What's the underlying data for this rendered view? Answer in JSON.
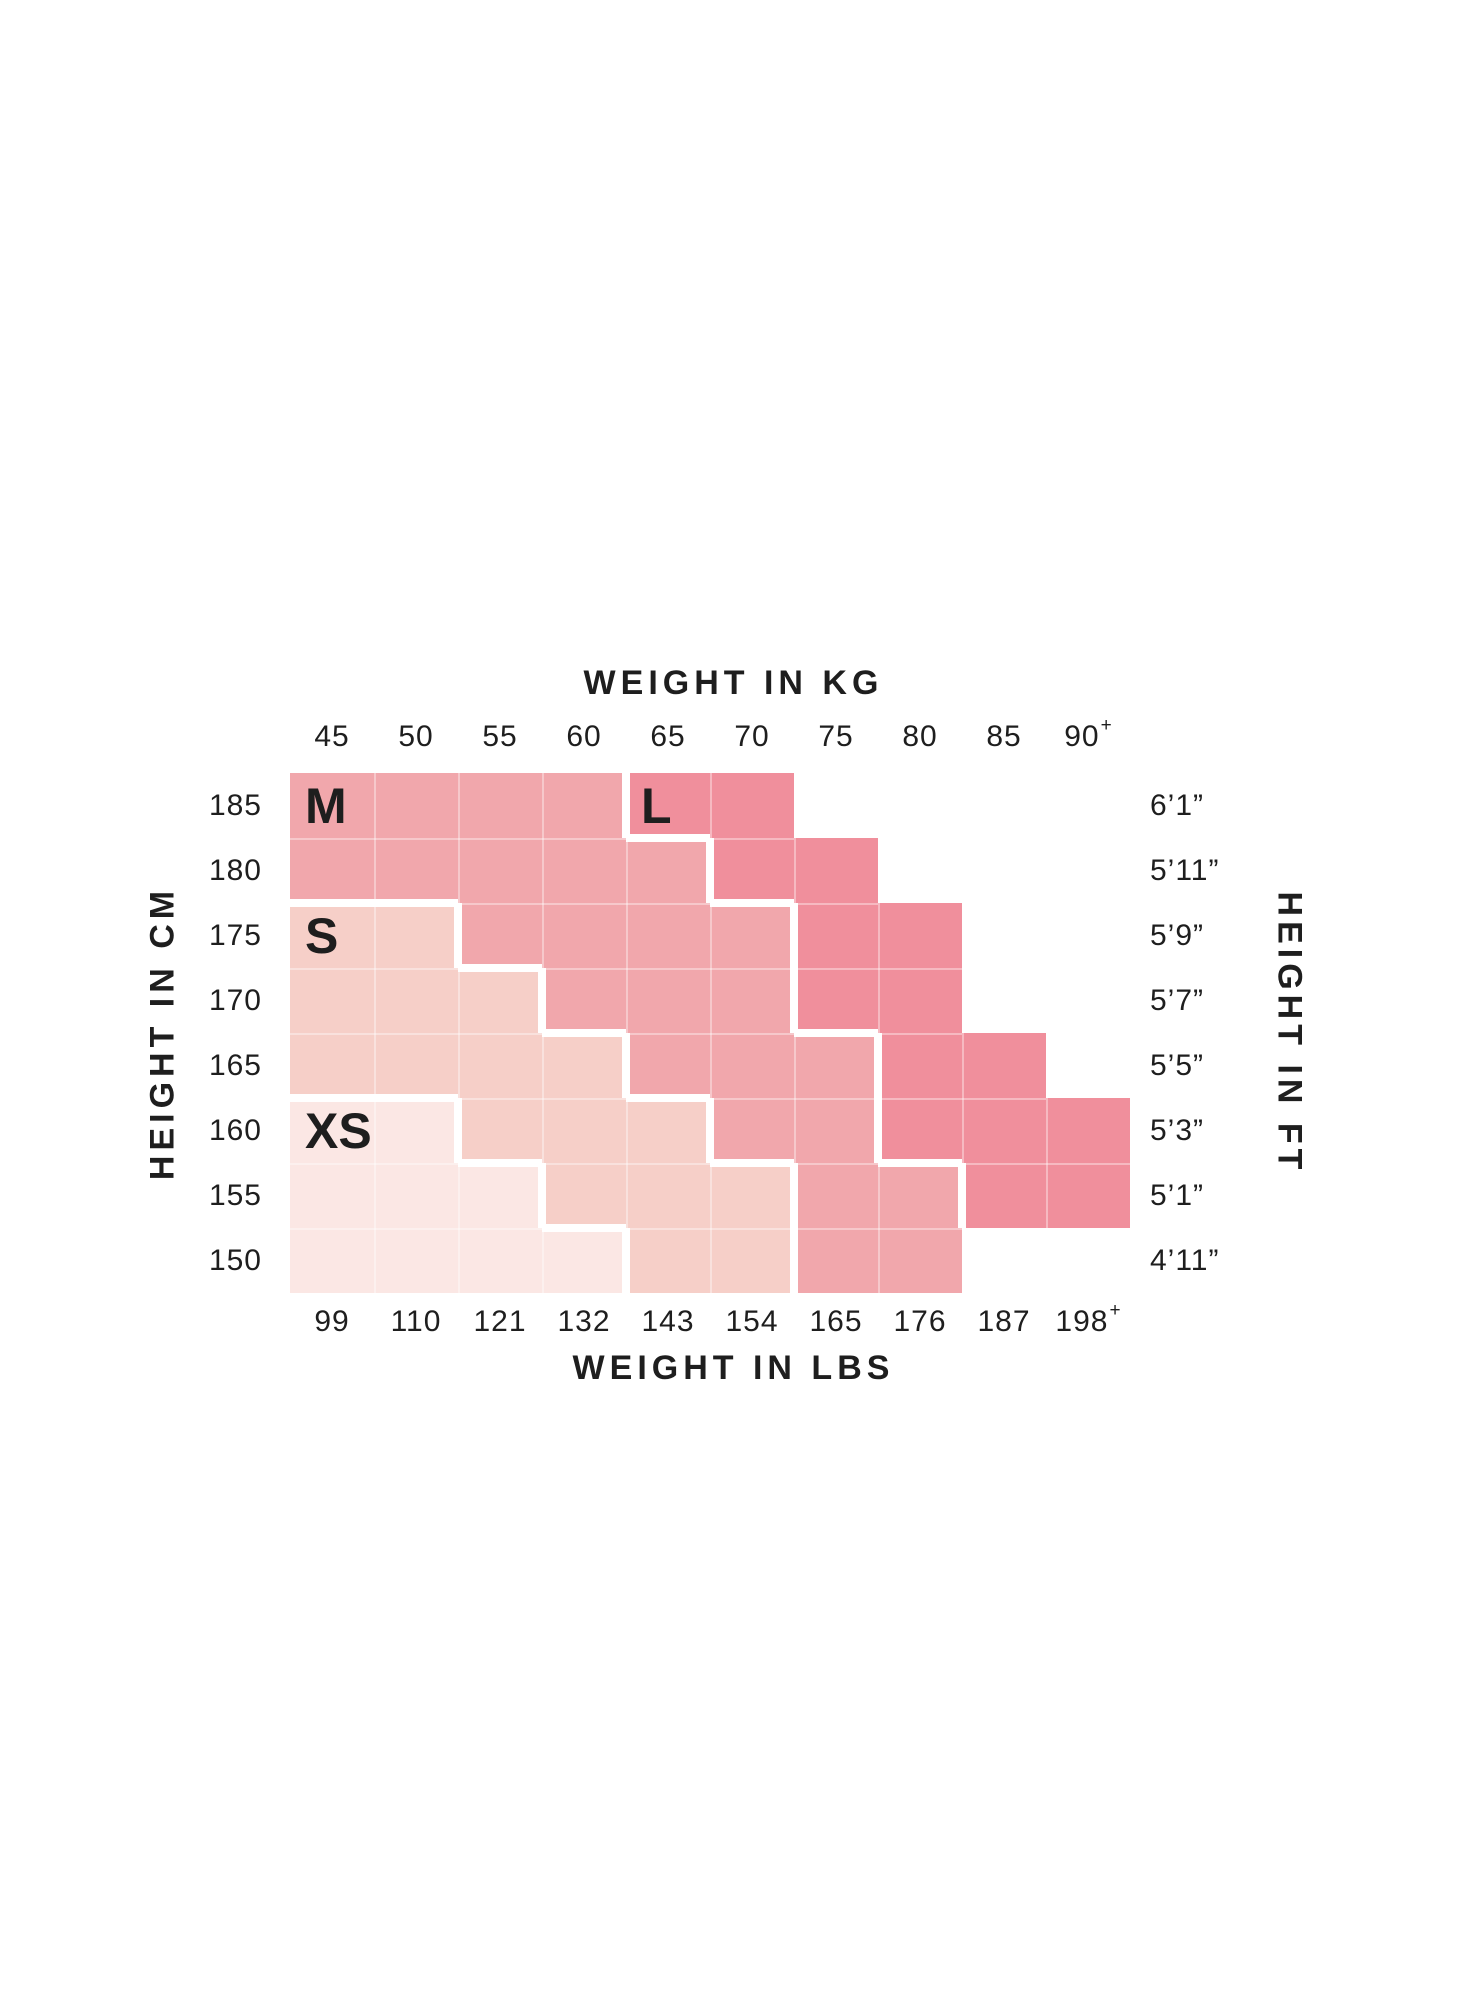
{
  "page": {
    "background": "#ffffff",
    "text_color": "#1e1e1e"
  },
  "chart_data": {
    "type": "heatmap",
    "title_top": "WEIGHT IN KG",
    "title_bottom": "WEIGHT IN LBS",
    "title_left": "HEIGHT IN CM",
    "title_right": "HEIGHT IN FT",
    "kg_ticks": [
      {
        "text": "45"
      },
      {
        "text": "50"
      },
      {
        "text": "55"
      },
      {
        "text": "60"
      },
      {
        "text": "65"
      },
      {
        "text": "70"
      },
      {
        "text": "75"
      },
      {
        "text": "80"
      },
      {
        "text": "85"
      },
      {
        "text": "90",
        "sup": "+"
      }
    ],
    "lbs_ticks": [
      {
        "text": "99"
      },
      {
        "text": "110"
      },
      {
        "text": "121"
      },
      {
        "text": "132"
      },
      {
        "text": "143"
      },
      {
        "text": "154"
      },
      {
        "text": "165"
      },
      {
        "text": "176"
      },
      {
        "text": "187"
      },
      {
        "text": "198",
        "sup": "+"
      }
    ],
    "cm_ticks": [
      "185",
      "180",
      "175",
      "170",
      "165",
      "160",
      "155",
      "150"
    ],
    "ft_ticks": [
      "6’1”",
      "5’11”",
      "5’9”",
      "5’7”",
      "5’5”",
      "5’3”",
      "5’1”",
      "4’11”"
    ],
    "sizes": {
      "XS": {
        "label": "XS",
        "color": "#fbe7e4"
      },
      "S": {
        "label": "S",
        "color": "#f6cfc8"
      },
      "M": {
        "label": "M",
        "color": "#f1a7ac"
      },
      "L": {
        "label": "L",
        "color": "#f08f9c"
      }
    },
    "matrix": [
      [
        "M",
        "M",
        "M",
        "M",
        "L",
        "L",
        null,
        null,
        null,
        null
      ],
      [
        "M",
        "M",
        "M",
        "M",
        "M",
        "L",
        "L",
        null,
        null,
        null
      ],
      [
        "S",
        "S",
        "M",
        "M",
        "M",
        "M",
        "L",
        "L",
        null,
        null
      ],
      [
        "S",
        "S",
        "S",
        "M",
        "M",
        "M",
        "L",
        "L",
        null,
        null
      ],
      [
        "S",
        "S",
        "S",
        "S",
        "M",
        "M",
        "M",
        "L",
        "L",
        null
      ],
      [
        "XS",
        "XS",
        "S",
        "S",
        "S",
        "M",
        "M",
        "L",
        "L",
        "L"
      ],
      [
        "XS",
        "XS",
        "XS",
        "S",
        "S",
        "S",
        "M",
        "M",
        "L",
        "L"
      ],
      [
        "XS",
        "XS",
        "XS",
        "XS",
        "S",
        "S",
        "M",
        "M",
        null,
        null
      ]
    ],
    "size_labels": [
      {
        "size": "M",
        "row": 0,
        "col": 0
      },
      {
        "size": "L",
        "row": 0,
        "col": 4
      },
      {
        "size": "S",
        "row": 2,
        "col": 0
      },
      {
        "size": "XS",
        "row": 5,
        "col": 0
      }
    ]
  }
}
